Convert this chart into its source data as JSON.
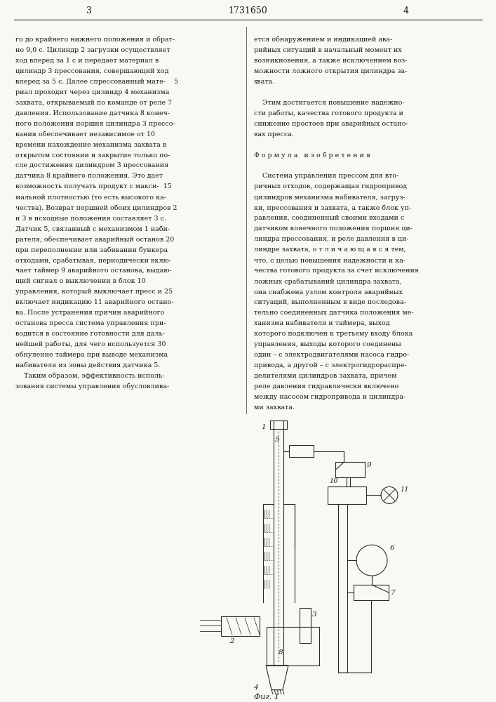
{
  "page_width": 7.07,
  "page_height": 10.0,
  "bg_color": "#f8f8f4",
  "text_color": "#1a1a1a",
  "line_color": "#2a2a2a",
  "page_num_left": "3",
  "page_num_center": "1731650",
  "page_num_right": "4",
  "fig_label": "Фиг. 1",
  "left_col": [
    "го до крайнего нижнего положения и обрат-",
    "но 9,0 с. Цилиндр 2 загрузки осуществляет",
    "ход вперед за 1 с и передает материал в",
    "цилиндр 3 прессования, совершающий ход",
    "вперед за 5 с. Далее спрессованный мате-    5",
    "риал проходит через цилиндр 4 механизма",
    "захвата, открываемый по команде от реле 7",
    "давления. Использование датчика 8 конеч-",
    "ного положения поршня цилиндра 3 прессо-",
    "вания обеспечивает независимое от 10",
    "времени нахождение механизма захвата в",
    "открытом состоянии и закрытие только по-",
    "сле достижения цилиндром 3 прессования",
    "датчика 8 крайнего положения. Это дает",
    "возможность получать продукт с макси-  15",
    "мальной плотностью (то есть высокого ка-",
    "чества). Возврат поршней обоих цилиндров 2",
    "и 3 в исходные положения составляет 3 с.",
    "Датчик 5, связанный с механизмом 1 наби-",
    "рателя, обеспечивает аварийный останов 20",
    "при переполнении или забивании бункера",
    "отходами, срабатывая, периодически вклю-",
    "чает таймер 9 аварийного останова, выдаю-",
    "щий сигнал о выключении в блок 10",
    "управления, который выключает пресс и 25",
    "включает индикацию 11 аварийного остано-",
    "ва. После устранения причин аварийного",
    "останова пресса система управления при-",
    "водится в состояние готовности для даль-",
    "нейшей работы, для чего используется 30",
    "обнуление таймера при выводе механизма",
    "набивателя из зоны действия датчика 5.",
    "    Таким образом, эффективность исполь-",
    "зования системы управления обусловлива-"
  ],
  "right_col": [
    "ется обнаружением и индикацией ава-",
    "рийных ситуаций в начальный момент их",
    "возникновения, а также исключением воз-",
    "можности ложного открытия цилиндра за-",
    "хвата.",
    "",
    "    Этим достигается повышение надежно-",
    "сти работы, качества готового продукта и",
    "снижение простоев при аварийных остано-",
    "вах пресса.",
    "",
    "Ф о р м у л а   и з о б р е т е н и я",
    "",
    "    Система управления прессом для вто-",
    "ричных отходов, содержащая гидропривод",
    "цилиндров механизма набивателя, загруз-",
    "ки, прессования и захвата, а также блок уп-",
    "равления, соединенный своими входами с",
    "датчиком конечного положения поршня ци-",
    "линдра прессования, и реле давления в ци-",
    "линдре захвата, о т л и ч а ю щ а я с я тем,",
    "что, с целью повышения надежности и ка-",
    "чества готового продукта за счет исключения",
    "ложных срабатываний цилиндра захвата,",
    "она снабжена узлом контроля аварийных",
    "ситуаций, выполненным в виде последова-",
    "тельно соединенных датчика положения ме-",
    "ханизма набивателя и таймера, выход",
    "которого подключен к третьему входу блока",
    "управления, выходы которого соединены",
    "один – с электродвигателями насоса гидро-",
    "привода, а другой – с электрогидрораспре-",
    "делителями цилиндров захвата, причем",
    "реле давления гидравлически включено",
    "между насосом гидропривода и цилиндра-",
    "ми захвата."
  ]
}
